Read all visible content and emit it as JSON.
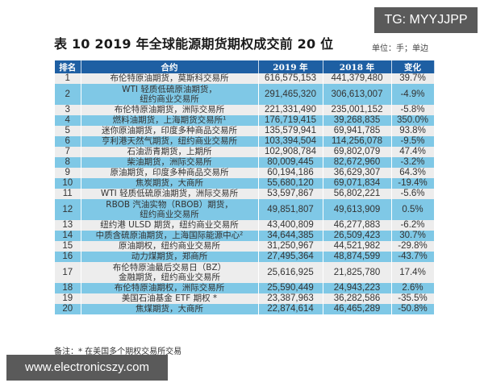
{
  "watermark_top": "TG: MYYJJPP",
  "watermark_bottom": "www.electronicszy.com",
  "title": "表 10  2019 年全球能源期货期权成交前 20 位",
  "unit": "单位：手；单边",
  "headers": [
    "排名",
    "合约",
    "2019 年",
    "2018 年",
    "变化"
  ],
  "rows": [
    {
      "rank": "1",
      "contract": "布伦特原油期货，莫斯科交易所",
      "y2019": "616,575,153",
      "y2018": "441,379,480",
      "change": "39.7%"
    },
    {
      "rank": "2",
      "contract": "WTI 轻质低硫原油期货，\n纽约商业交易所",
      "y2019": "291,465,320",
      "y2018": "306,613,007",
      "change": "-4.9%"
    },
    {
      "rank": "3",
      "contract": "布伦特原油期货，洲际交易所",
      "y2019": "221,331,490",
      "y2018": "235,001,152",
      "change": "-5.8%"
    },
    {
      "rank": "4",
      "contract": "燃料油期货，上海期货交易所¹",
      "y2019": "176,719,415",
      "y2018": "39,268,835",
      "change": "350.0%"
    },
    {
      "rank": "5",
      "contract": "迷你原油期货，印度多种商品交易所",
      "y2019": "135,579,941",
      "y2018": "69,941,785",
      "change": "93.8%"
    },
    {
      "rank": "6",
      "contract": "亨利港天然气期货，纽约商业交易所",
      "y2019": "103,394,504",
      "y2018": "114,256,078",
      "change": "-9.5%"
    },
    {
      "rank": "7",
      "contract": "石油沥青期货，上期所",
      "y2019": "102,908,784",
      "y2018": "69,802,079",
      "change": "47.4%"
    },
    {
      "rank": "8",
      "contract": "柴油期货，洲际交易所",
      "y2019": "80,009,445",
      "y2018": "82,672,960",
      "change": "-3.2%"
    },
    {
      "rank": "9",
      "contract": "原油期货，印度多种商品交易所",
      "y2019": "60,194,186",
      "y2018": "36,629,307",
      "change": "64.3%"
    },
    {
      "rank": "10",
      "contract": "焦炭期货，大商所",
      "y2019": "55,680,120",
      "y2018": "69,071,834",
      "change": "-19.4%"
    },
    {
      "rank": "11",
      "contract": "WTI 轻质低硫原油期货，洲际交易所",
      "y2019": "53,597,867",
      "y2018": "56,802,221",
      "change": "-5.6%"
    },
    {
      "rank": "12",
      "contract": "RBOB 汽油实物（RBOB）期货，\n纽约商业交易所",
      "y2019": "49,851,807",
      "y2018": "49,613,909",
      "change": "0.5%"
    },
    {
      "rank": "13",
      "contract": "纽约港 ULSD 期货，纽约商业交易所",
      "y2019": "43,400,809",
      "y2018": "46,277,883",
      "change": "-6.2%"
    },
    {
      "rank": "14",
      "contract": "中质含硫原油期货，上海国际能源中心²",
      "y2019": "34,644,385",
      "y2018": "26,509,423",
      "change": "30.7%"
    },
    {
      "rank": "15",
      "contract": "原油期权，纽约商业交易所",
      "y2019": "31,250,967",
      "y2018": "44,521,982",
      "change": "-29.8%"
    },
    {
      "rank": "16",
      "contract": "动力煤期货，郑商所",
      "y2019": "27,495,364",
      "y2018": "48,874,599",
      "change": "-43.7%"
    },
    {
      "rank": "17",
      "contract": "布伦特原油最后交易日（BZ）\n金融期货，纽约商业交易所",
      "y2019": "25,616,925",
      "y2018": "21,825,780",
      "change": "17.4%"
    },
    {
      "rank": "18",
      "contract": "布伦特原油期权，洲际交易所",
      "y2019": "25,590,449",
      "y2018": "24,943,223",
      "change": "2.6%"
    },
    {
      "rank": "19",
      "contract": "美国石油基金 ETF 期权 *",
      "y2019": "23,387,963",
      "y2018": "36,282,586",
      "change": "-35.5%"
    },
    {
      "rank": "20",
      "contract": "焦煤期货，大商所",
      "y2019": "22,874,614",
      "y2018": "46,465,289",
      "change": "-50.8%"
    }
  ],
  "note": "备注：*  在美国多个期权交易所交易",
  "colors": {
    "header_bg": "#1e5fa3",
    "row_light": "#ededed",
    "row_blue": "#7fc8e6",
    "watermark_bg": "#5a5a5a"
  }
}
